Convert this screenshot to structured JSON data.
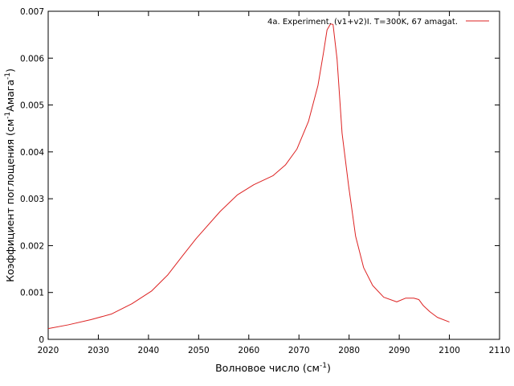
{
  "chart_data": {
    "type": "line",
    "title": "",
    "xlabel": {
      "base": "Волновое число (см",
      "sup": "-1",
      "tail": ")"
    },
    "ylabel": {
      "p1": "Коэффициент поглощения (см",
      "sup1": "-1",
      "p2": "Амага",
      "sup2": "-1",
      "p3": ")"
    },
    "xlim": [
      2020,
      2110
    ],
    "ylim": [
      0,
      0.007
    ],
    "xticks": [
      2020,
      2030,
      2040,
      2050,
      2060,
      2070,
      2080,
      2090,
      2100,
      2110
    ],
    "yticks": [
      0,
      0.001,
      0.002,
      0.003,
      0.004,
      0.005,
      0.006,
      0.007
    ],
    "ytick_labels": [
      "0",
      "0.001",
      "0.002",
      "0.003",
      "0.004",
      "0.005",
      "0.006",
      "0.007"
    ],
    "grid": false,
    "legend_position": "top-right",
    "series": [
      {
        "name": "4a. Experiment. (v1+v2)I. T=300K, 67 amagat.",
        "color": "#dd2222",
        "x": [
          2020,
          2024,
          2028.5,
          2032.6,
          2036.7,
          2040.6,
          2043.8,
          2046.7,
          2049.5,
          2054.3,
          2057.7,
          2061,
          2064.8,
          2067.3,
          2069.6,
          2071.9,
          2073.8,
          2074.9,
          2075.6,
          2076.3,
          2076.8,
          2077.6,
          2078.6,
          2079.9,
          2081.3,
          2082.9,
          2084.7,
          2086.9,
          2089.5,
          2091.3,
          2092.9,
          2093.9,
          2094.8,
          2096.1,
          2097.6,
          2100
        ],
        "y": [
          0.00023,
          0.00031,
          0.00042,
          0.00054,
          0.00076,
          0.00103,
          0.00137,
          0.00177,
          0.00215,
          0.00273,
          0.00308,
          0.0033,
          0.00349,
          0.00372,
          0.00406,
          0.00465,
          0.00542,
          0.00612,
          0.0066,
          0.00673,
          0.00672,
          0.00598,
          0.0044,
          0.00328,
          0.0022,
          0.00153,
          0.00115,
          0.0009,
          0.0008,
          0.00088,
          0.00088,
          0.00085,
          0.00072,
          0.00059,
          0.00047,
          0.00037
        ]
      }
    ]
  }
}
